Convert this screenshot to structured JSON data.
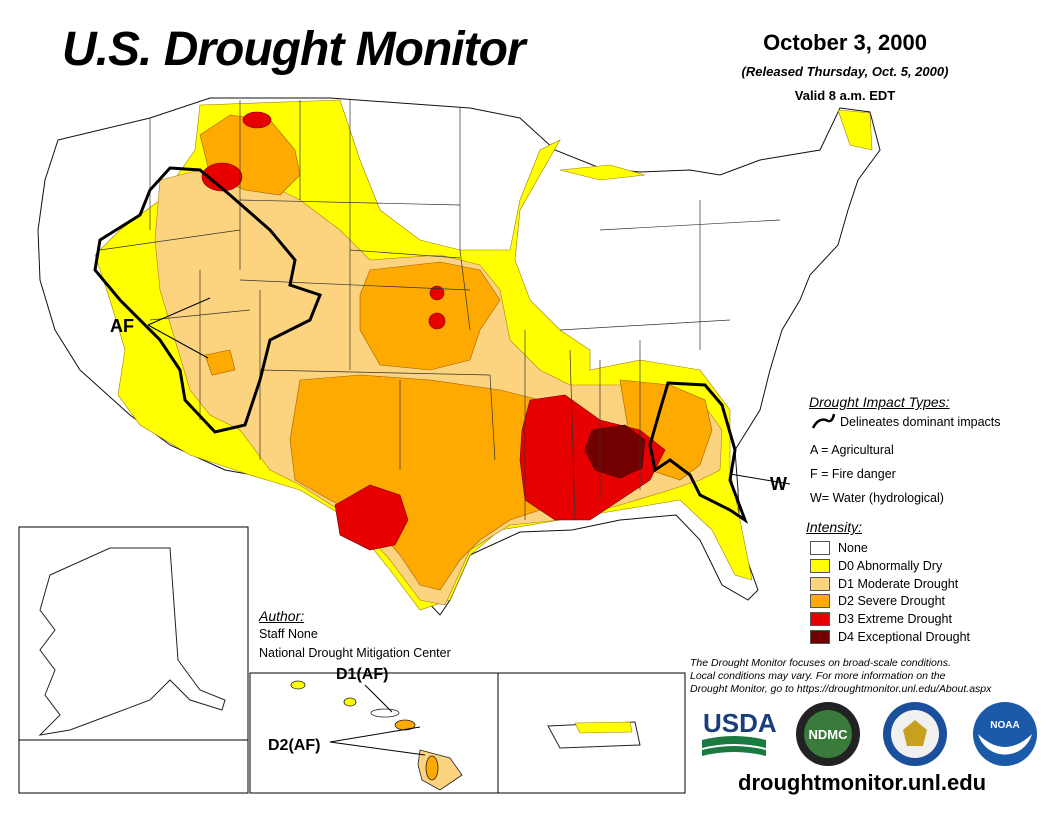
{
  "header": {
    "title": "U.S. Drought Monitor",
    "date": "October 3, 2000",
    "released": "(Released Thursday, Oct. 5, 2000)",
    "valid": "Valid 8 a.m. EDT"
  },
  "map_labels": {
    "af": "AF",
    "w": "W",
    "hawaii_d1": "D1(AF)",
    "hawaii_d2": "D2(AF)"
  },
  "author": {
    "heading": "Author:",
    "name": "Staff None",
    "org": "National Drought Mitigation Center"
  },
  "impact_types": {
    "heading": "Drought Impact Types:",
    "delineates": "Delineates dominant impacts",
    "items": [
      {
        "code": "A",
        "text": "A = Agricultural"
      },
      {
        "code": "F",
        "text": "F = Fire danger"
      },
      {
        "code": "W",
        "text": "W= Water (hydrological)"
      }
    ]
  },
  "intensity": {
    "heading": "Intensity:",
    "items": [
      {
        "label": "None",
        "color": "#ffffff"
      },
      {
        "label": "D0 Abnormally Dry",
        "color": "#ffff00"
      },
      {
        "label": "D1 Moderate Drought",
        "color": "#fcd37f"
      },
      {
        "label": "D2 Severe Drought",
        "color": "#ffaa00"
      },
      {
        "label": "D3 Extreme Drought",
        "color": "#e60000"
      },
      {
        "label": "D4 Exceptional Drought",
        "color": "#730000"
      }
    ]
  },
  "note": {
    "line1": "The Drought Monitor focuses on broad-scale conditions.",
    "line2": "Local conditions may vary. For more information on the",
    "line3": "Drought Monitor, go to https://droughtmonitor.unl.edu/About.aspx"
  },
  "logos": {
    "usda": "USDA",
    "ndmc": "NDMC",
    "noaa": "NOAA",
    "commerce_icon": "commerce-seal-icon"
  },
  "url": "droughtmonitor.unl.edu"
}
